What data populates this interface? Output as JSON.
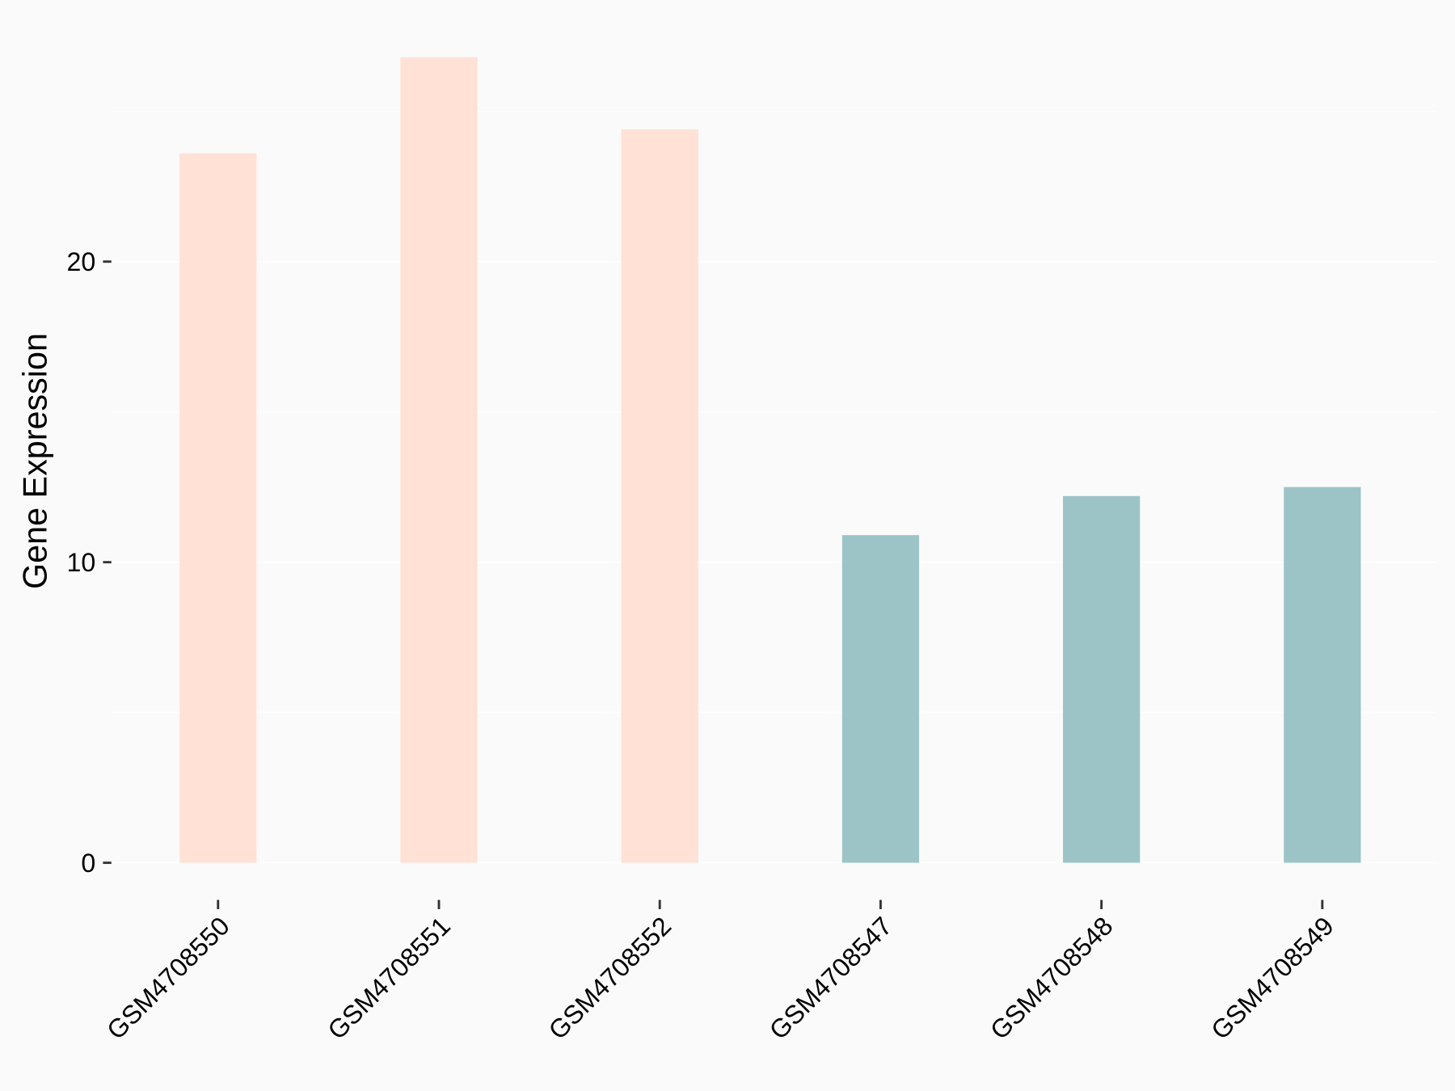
{
  "chart_data": {
    "type": "bar",
    "title": "",
    "xlabel": "",
    "ylabel": "Gene Expression",
    "categories": [
      "GSM4708550",
      "GSM4708551",
      "GSM4708552",
      "GSM4708547",
      "GSM4708548",
      "GSM4708549"
    ],
    "values": [
      23.6,
      26.8,
      24.4,
      10.9,
      12.2,
      12.5
    ],
    "bar_colors": [
      "#FFE1D6",
      "#FFE1D6",
      "#FFE1D6",
      "#9CC4C7",
      "#9CC4C7",
      "#9CC4C7"
    ],
    "yticks": [
      0,
      10,
      20
    ],
    "ytick_labels": [
      "0",
      "10",
      "20"
    ],
    "ylim": [
      -1.3,
      28.1
    ],
    "grid": true,
    "legend": "none",
    "background": "#FAFAFA",
    "grid_color": "#FFFFFF"
  }
}
